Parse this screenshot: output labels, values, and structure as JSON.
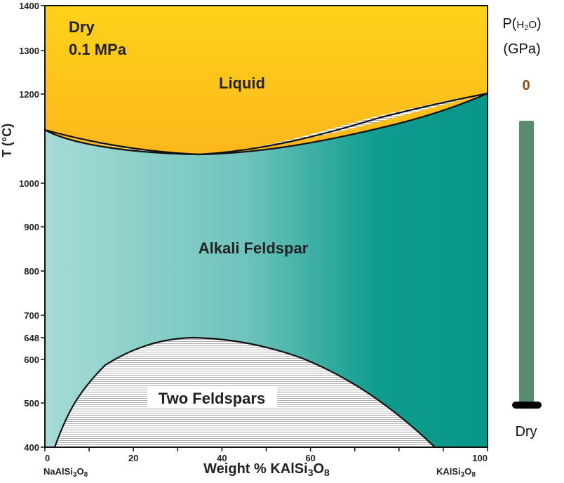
{
  "title_lines": [
    "Dry",
    "0.1 MPa"
  ],
  "regions": {
    "liquid": "Liquid",
    "alkali_feldspar": "Alkali Feldspar",
    "two_feldspars": "Two Feldspars"
  },
  "axes": {
    "y_title": "T (°C)",
    "x_title": "Weight % KAlSi3O8",
    "x_left_end": "NaAlSi3O8",
    "x_right_end": "KAlSi3O8",
    "y_ticks": [
      1400,
      1300,
      1200,
      1000,
      900,
      800,
      700,
      648,
      600,
      500,
      400
    ],
    "x_ticks": [
      0,
      20,
      40,
      60,
      100
    ],
    "xlim": [
      0,
      100
    ],
    "ylim": [
      400,
      1400
    ]
  },
  "pressure_panel": {
    "label_line1": "P(H2O)",
    "label_line2": "(GPa)",
    "value": "0",
    "bottom_label": "Dry"
  },
  "colors": {
    "liquid_top": "#ffd21a",
    "liquid_bottom": "#e8432a",
    "feldspar_left": "#a6dad6",
    "feldspar_right": "#0a978a",
    "slider": "#5a8a70",
    "value_color": "#8a4a1a"
  }
}
